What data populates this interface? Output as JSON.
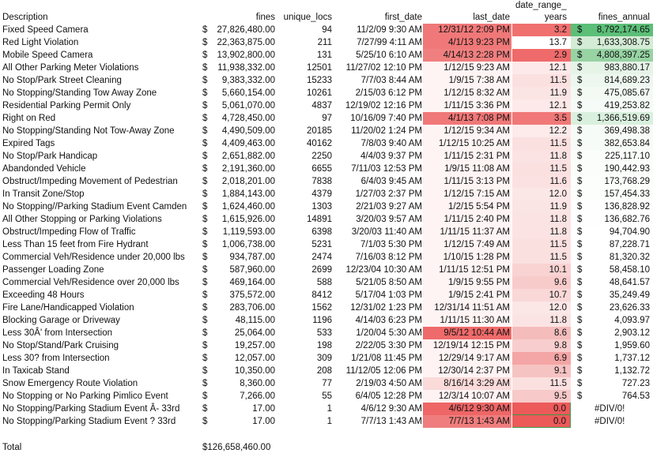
{
  "header_top": {
    "date_range": "date_range_"
  },
  "headers": {
    "description": "Description",
    "fines": "fines",
    "unique_locs": "unique_locs",
    "first_date": "first_date",
    "last_date": "last_date",
    "years": "years",
    "fines_annual": "fines_annual"
  },
  "rows": [
    {
      "desc": "Fixed Speed Camera",
      "cur": "$",
      "fines": "27,826,480.00",
      "locs": "94",
      "first": "11/2/09 9:30 AM",
      "last": "12/31/12 2:09 PM",
      "years": "3.2",
      "ann_cur": "$",
      "annual": "8,792,174.65",
      "last_bg": "#f07878",
      "years_bg": "#f07070",
      "ann_bg": "#5cbf78"
    },
    {
      "desc": "Red Light Violation",
      "cur": "$",
      "fines": "22,363,875.00",
      "locs": "211",
      "first": "7/27/99 4:11 AM",
      "last": "4/1/13 9:23 PM",
      "years": "13.7",
      "ann_cur": "$",
      "annual": "1,633,308.75",
      "last_bg": "#f07878",
      "years_bg": "#ffffff",
      "ann_bg": "#d4ecd6"
    },
    {
      "desc": "Mobile Speed Camera",
      "cur": "$",
      "fines": "13,902,800.00",
      "locs": "131",
      "first": "5/25/10 6:10 AM",
      "last": "4/14/13 2:28 PM",
      "years": "2.9",
      "ann_cur": "$",
      "annual": "4,808,397.25",
      "last_bg": "#f07f7f",
      "years_bg": "#ef6a6a",
      "ann_bg": "#97d3a3"
    },
    {
      "desc": "All Other Parking Meter Violations",
      "cur": "$",
      "fines": "11,938,332.00",
      "locs": "12501",
      "first": "11/27/02 12:10 PM",
      "last": "1/12/15 9:23 AM",
      "years": "12.1",
      "ann_cur": "$",
      "annual": "983,880.17",
      "last_bg": "#fff4f4",
      "years_bg": "#fde9e9",
      "ann_bg": "#e6f4e8"
    },
    {
      "desc": "No Stop/Park Street Cleaning",
      "cur": "$",
      "fines": "9,383,332.00",
      "locs": "15233",
      "first": "7/7/03 8:44 AM",
      "last": "1/9/15 7:38 AM",
      "years": "11.5",
      "ann_cur": "$",
      "annual": "814,689.23",
      "last_bg": "#fff4f4",
      "years_bg": "#fbe0e0",
      "ann_bg": "#edf7ef"
    },
    {
      "desc": "No Stopping/Standing Tow Away Zone",
      "cur": "$",
      "fines": "5,660,154.00",
      "locs": "10261",
      "first": "2/15/03 6:12 PM",
      "last": "1/12/15 8:32 AM",
      "years": "11.9",
      "ann_cur": "$",
      "annual": "475,085.67",
      "last_bg": "#fff4f4",
      "years_bg": "#fbe4e4",
      "ann_bg": "#f3faf4"
    },
    {
      "desc": "Residential Parking Permit Only",
      "cur": "$",
      "fines": "5,061,070.00",
      "locs": "4837",
      "first": "12/19/02 12:16 PM",
      "last": "1/11/15 3:36 PM",
      "years": "12.1",
      "ann_cur": "$",
      "annual": "419,253.82",
      "last_bg": "#fff4f4",
      "years_bg": "#fde9e9",
      "ann_bg": "#f5fbf6"
    },
    {
      "desc": "Right on Red",
      "cur": "$",
      "fines": "4,728,450.00",
      "locs": "97",
      "first": "10/16/09 7:40 PM",
      "last": "4/1/13 7:08 PM",
      "years": "3.5",
      "ann_cur": "$",
      "annual": "1,366,519.69",
      "last_bg": "#f07878",
      "years_bg": "#f17878",
      "ann_bg": "#daf0de"
    },
    {
      "desc": "No Stopping/Standing Not Tow-Away Zone",
      "cur": "$",
      "fines": "4,490,509.00",
      "locs": "20185",
      "first": "11/20/02 1:24 PM",
      "last": "1/12/15 9:34 AM",
      "years": "12.2",
      "ann_cur": "$",
      "annual": "369,498.38",
      "last_bg": "#fff4f4",
      "years_bg": "#fdeaea",
      "ann_bg": "#f7fbf7"
    },
    {
      "desc": "Expired Tags",
      "cur": "$",
      "fines": "4,409,463.00",
      "locs": "40162",
      "first": "7/8/03 9:40 AM",
      "last": "1/12/15 10:25 AM",
      "years": "11.5",
      "ann_cur": "$",
      "annual": "382,653.84",
      "last_bg": "#fff4f4",
      "years_bg": "#fbe0e0",
      "ann_bg": "#f7fbf7"
    },
    {
      "desc": "No Stop/Park Handicap",
      "cur": "$",
      "fines": "2,651,882.00",
      "locs": "2250",
      "first": "4/4/03 9:37 PM",
      "last": "1/11/15 2:31 PM",
      "years": "11.8",
      "ann_cur": "$",
      "annual": "225,117.10",
      "last_bg": "#fff4f4",
      "years_bg": "#fbe3e3",
      "ann_bg": "#fbfdfb"
    },
    {
      "desc": "Abandonded Vehicle",
      "cur": "$",
      "fines": "2,191,360.00",
      "locs": "6655",
      "first": "7/11/03 12:53 PM",
      "last": "1/9/15 11:08 AM",
      "years": "11.5",
      "ann_cur": "$",
      "annual": "190,442.93",
      "last_bg": "#fff4f4",
      "years_bg": "#fbe0e0",
      "ann_bg": "#fbfdfb"
    },
    {
      "desc": "Obstruct/Impeding Movement of Pedestrian",
      "cur": "$",
      "fines": "2,018,201.00",
      "locs": "7838",
      "first": "6/4/03 9:45 AM",
      "last": "1/11/15 3:13 PM",
      "years": "11.6",
      "ann_cur": "$",
      "annual": "173,768.29",
      "last_bg": "#fff4f4",
      "years_bg": "#fbe1e1",
      "ann_bg": "#fcfefc"
    },
    {
      "desc": "In Transit Zone/Stop",
      "cur": "$",
      "fines": "1,884,143.00",
      "locs": "4379",
      "first": "1/27/03 2:37 PM",
      "last": "1/12/15 7:15 AM",
      "years": "12.0",
      "ann_cur": "$",
      "annual": "157,454.33",
      "last_bg": "#fff4f4",
      "years_bg": "#fce7e7",
      "ann_bg": "#fcfefc"
    },
    {
      "desc": "No Stopping//Parking Stadium Event Camden",
      "cur": "$",
      "fines": "1,624,460.00",
      "locs": "1303",
      "first": "2/21/03 9:27 AM",
      "last": "1/2/15 5:54 PM",
      "years": "11.9",
      "ann_cur": "$",
      "annual": "136,828.92",
      "last_bg": "#fff3f3",
      "years_bg": "#fbe4e4",
      "ann_bg": "#fdfefd"
    },
    {
      "desc": "All Other Stopping or Parking Violations",
      "cur": "$",
      "fines": "1,615,926.00",
      "locs": "14891",
      "first": "3/20/03 9:57 AM",
      "last": "1/11/15 2:40 PM",
      "years": "11.8",
      "ann_cur": "$",
      "annual": "136,682.76",
      "last_bg": "#fff4f4",
      "years_bg": "#fbe3e3",
      "ann_bg": "#fdfefd"
    },
    {
      "desc": "Obstruct/Impeding Flow of Traffic",
      "cur": "$",
      "fines": "1,119,593.00",
      "locs": "6398",
      "first": "3/20/03 11:40 AM",
      "last": "1/11/15 11:37 AM",
      "years": "11.8",
      "ann_cur": "$",
      "annual": "94,704.90",
      "last_bg": "#fff4f4",
      "years_bg": "#fbe3e3",
      "ann_bg": "#ffffff"
    },
    {
      "desc": "Less Than 15 feet from Fire Hydrant",
      "cur": "$",
      "fines": "1,006,738.00",
      "locs": "5231",
      "first": "7/1/03 5:30 PM",
      "last": "1/12/15 7:49 AM",
      "years": "11.5",
      "ann_cur": "$",
      "annual": "87,228.71",
      "last_bg": "#fff4f4",
      "years_bg": "#fbe0e0",
      "ann_bg": "#ffffff"
    },
    {
      "desc": "Commercial Veh/Residence under 20,000 lbs",
      "cur": "$",
      "fines": "934,787.00",
      "locs": "2474",
      "first": "7/16/03 8:12 PM",
      "last": "1/10/15 1:28 PM",
      "years": "11.5",
      "ann_cur": "$",
      "annual": "81,320.32",
      "last_bg": "#fff4f4",
      "years_bg": "#fbe0e0",
      "ann_bg": "#ffffff"
    },
    {
      "desc": "Passenger Loading Zone",
      "cur": "$",
      "fines": "587,960.00",
      "locs": "2699",
      "first": "12/23/04 10:30 AM",
      "last": "1/11/15 12:51 PM",
      "years": "10.1",
      "ann_cur": "$",
      "annual": "58,458.10",
      "last_bg": "#fff4f4",
      "years_bg": "#f9d2d2",
      "ann_bg": "#ffffff"
    },
    {
      "desc": "Commercial Veh/Residence over 20,000 lbs",
      "cur": "$",
      "fines": "469,164.00",
      "locs": "588",
      "first": "5/21/05 8:50 AM",
      "last": "1/9/15 9:55 PM",
      "years": "9.6",
      "ann_cur": "$",
      "annual": "48,641.57",
      "last_bg": "#fff4f4",
      "years_bg": "#f8cbcb",
      "ann_bg": "#ffffff"
    },
    {
      "desc": "Exceeding 48 Hours",
      "cur": "$",
      "fines": "375,572.00",
      "locs": "8412",
      "first": "5/17/04 1:03 PM",
      "last": "1/9/15 2:41 PM",
      "years": "10.7",
      "ann_cur": "$",
      "annual": "35,249.49",
      "last_bg": "#fff4f4",
      "years_bg": "#fad8d8",
      "ann_bg": "#ffffff"
    },
    {
      "desc": "Fire Lane/Handicapped Violation",
      "cur": "$",
      "fines": "283,706.00",
      "locs": "1562",
      "first": "12/31/02 1:23 PM",
      "last": "12/31/14 11:51 AM",
      "years": "12.0",
      "ann_cur": "$",
      "annual": "23,626.33",
      "last_bg": "#fff3f3",
      "years_bg": "#fce7e7",
      "ann_bg": "#ffffff"
    },
    {
      "desc": "Blocking Garage or Driveway",
      "cur": "$",
      "fines": "48,115.00",
      "locs": "1196",
      "first": "4/14/03 6:23 PM",
      "last": "1/11/15 11:30 AM",
      "years": "11.8",
      "ann_cur": "$",
      "annual": "4,093.97",
      "last_bg": "#fff4f4",
      "years_bg": "#fbe3e3",
      "ann_bg": "#ffffff"
    },
    {
      "desc": "Less 30Â' from Intersection",
      "cur": "$",
      "fines": "25,064.00",
      "locs": "533",
      "first": "1/20/04 5:30 AM",
      "last": "9/5/12 10:44 AM",
      "years": "8.6",
      "ann_cur": "$",
      "annual": "2,903.12",
      "last_bg": "#ef6a6a",
      "years_bg": "#f5bcbc",
      "ann_bg": "#ffffff"
    },
    {
      "desc": "No Stop/Stand/Park Cruising",
      "cur": "$",
      "fines": "19,257.00",
      "locs": "198",
      "first": "2/22/05 3:30 PM",
      "last": "12/19/14 12:15 PM",
      "years": "9.8",
      "ann_cur": "$",
      "annual": "1,959.60",
      "last_bg": "#fff2f2",
      "years_bg": "#f8cdcd",
      "ann_bg": "#ffffff"
    },
    {
      "desc": "Less 30? from Intersection",
      "cur": "$",
      "fines": "12,057.00",
      "locs": "309",
      "first": "1/21/08 11:45 PM",
      "last": "12/29/14 9:17 AM",
      "years": "6.9",
      "ann_cur": "$",
      "annual": "1,737.12",
      "last_bg": "#fff3f3",
      "years_bg": "#f4a5a5",
      "ann_bg": "#ffffff"
    },
    {
      "desc": "In Taxicab Stand",
      "cur": "$",
      "fines": "10,350.00",
      "locs": "208",
      "first": "11/12/05 12:06 PM",
      "last": "12/30/14 2:37 PM",
      "years": "9.1",
      "ann_cur": "$",
      "annual": "1,132.72",
      "last_bg": "#fff3f3",
      "years_bg": "#f6c3c3",
      "ann_bg": "#ffffff"
    },
    {
      "desc": "Snow Emergency Route Violation",
      "cur": "$",
      "fines": "8,360.00",
      "locs": "77",
      "first": "2/19/03 4:50 AM",
      "last": "8/16/14 3:29 AM",
      "years": "11.5",
      "ann_cur": "$",
      "annual": "727.23",
      "last_bg": "#fbdada",
      "years_bg": "#fbe0e0",
      "ann_bg": "#ffffff"
    },
    {
      "desc": "No Stopping or No Parking Pimlico Event",
      "cur": "$",
      "fines": "7,266.00",
      "locs": "55",
      "first": "6/4/05 12:28 PM",
      "last": "12/3/14 10:07 AM",
      "years": "9.5",
      "ann_cur": "$",
      "annual": "764.53",
      "last_bg": "#fff2f2",
      "years_bg": "#f7c9c9",
      "ann_bg": "#ffffff"
    },
    {
      "desc": "No Stopping/Parking Stadium Event Â- 33rd",
      "cur": "$",
      "fines": "17.00",
      "locs": "1",
      "first": "4/6/12 9:30 AM",
      "last": "4/6/12 9:30 AM",
      "years": "0.0",
      "ann_cur": "",
      "annual": "#DIV/0!",
      "last_bg": "#ee6666",
      "years_bg": "#ec5a5a",
      "ann_bg": "#ffffff"
    },
    {
      "desc": "No Stopping/Parking Stadium Event ? 33rd",
      "cur": "$",
      "fines": "17.00",
      "locs": "1",
      "first": "7/7/13 1:43 AM",
      "last": "7/7/13 1:43 AM",
      "years": "0.0",
      "ann_cur": "",
      "annual": "#DIV/0!",
      "last_bg": "#f07d7d",
      "years_bg": "#ec5a5a",
      "ann_bg": "#ffffff"
    }
  ],
  "total": {
    "label": "Total",
    "fines": "$126,658,460.00"
  }
}
